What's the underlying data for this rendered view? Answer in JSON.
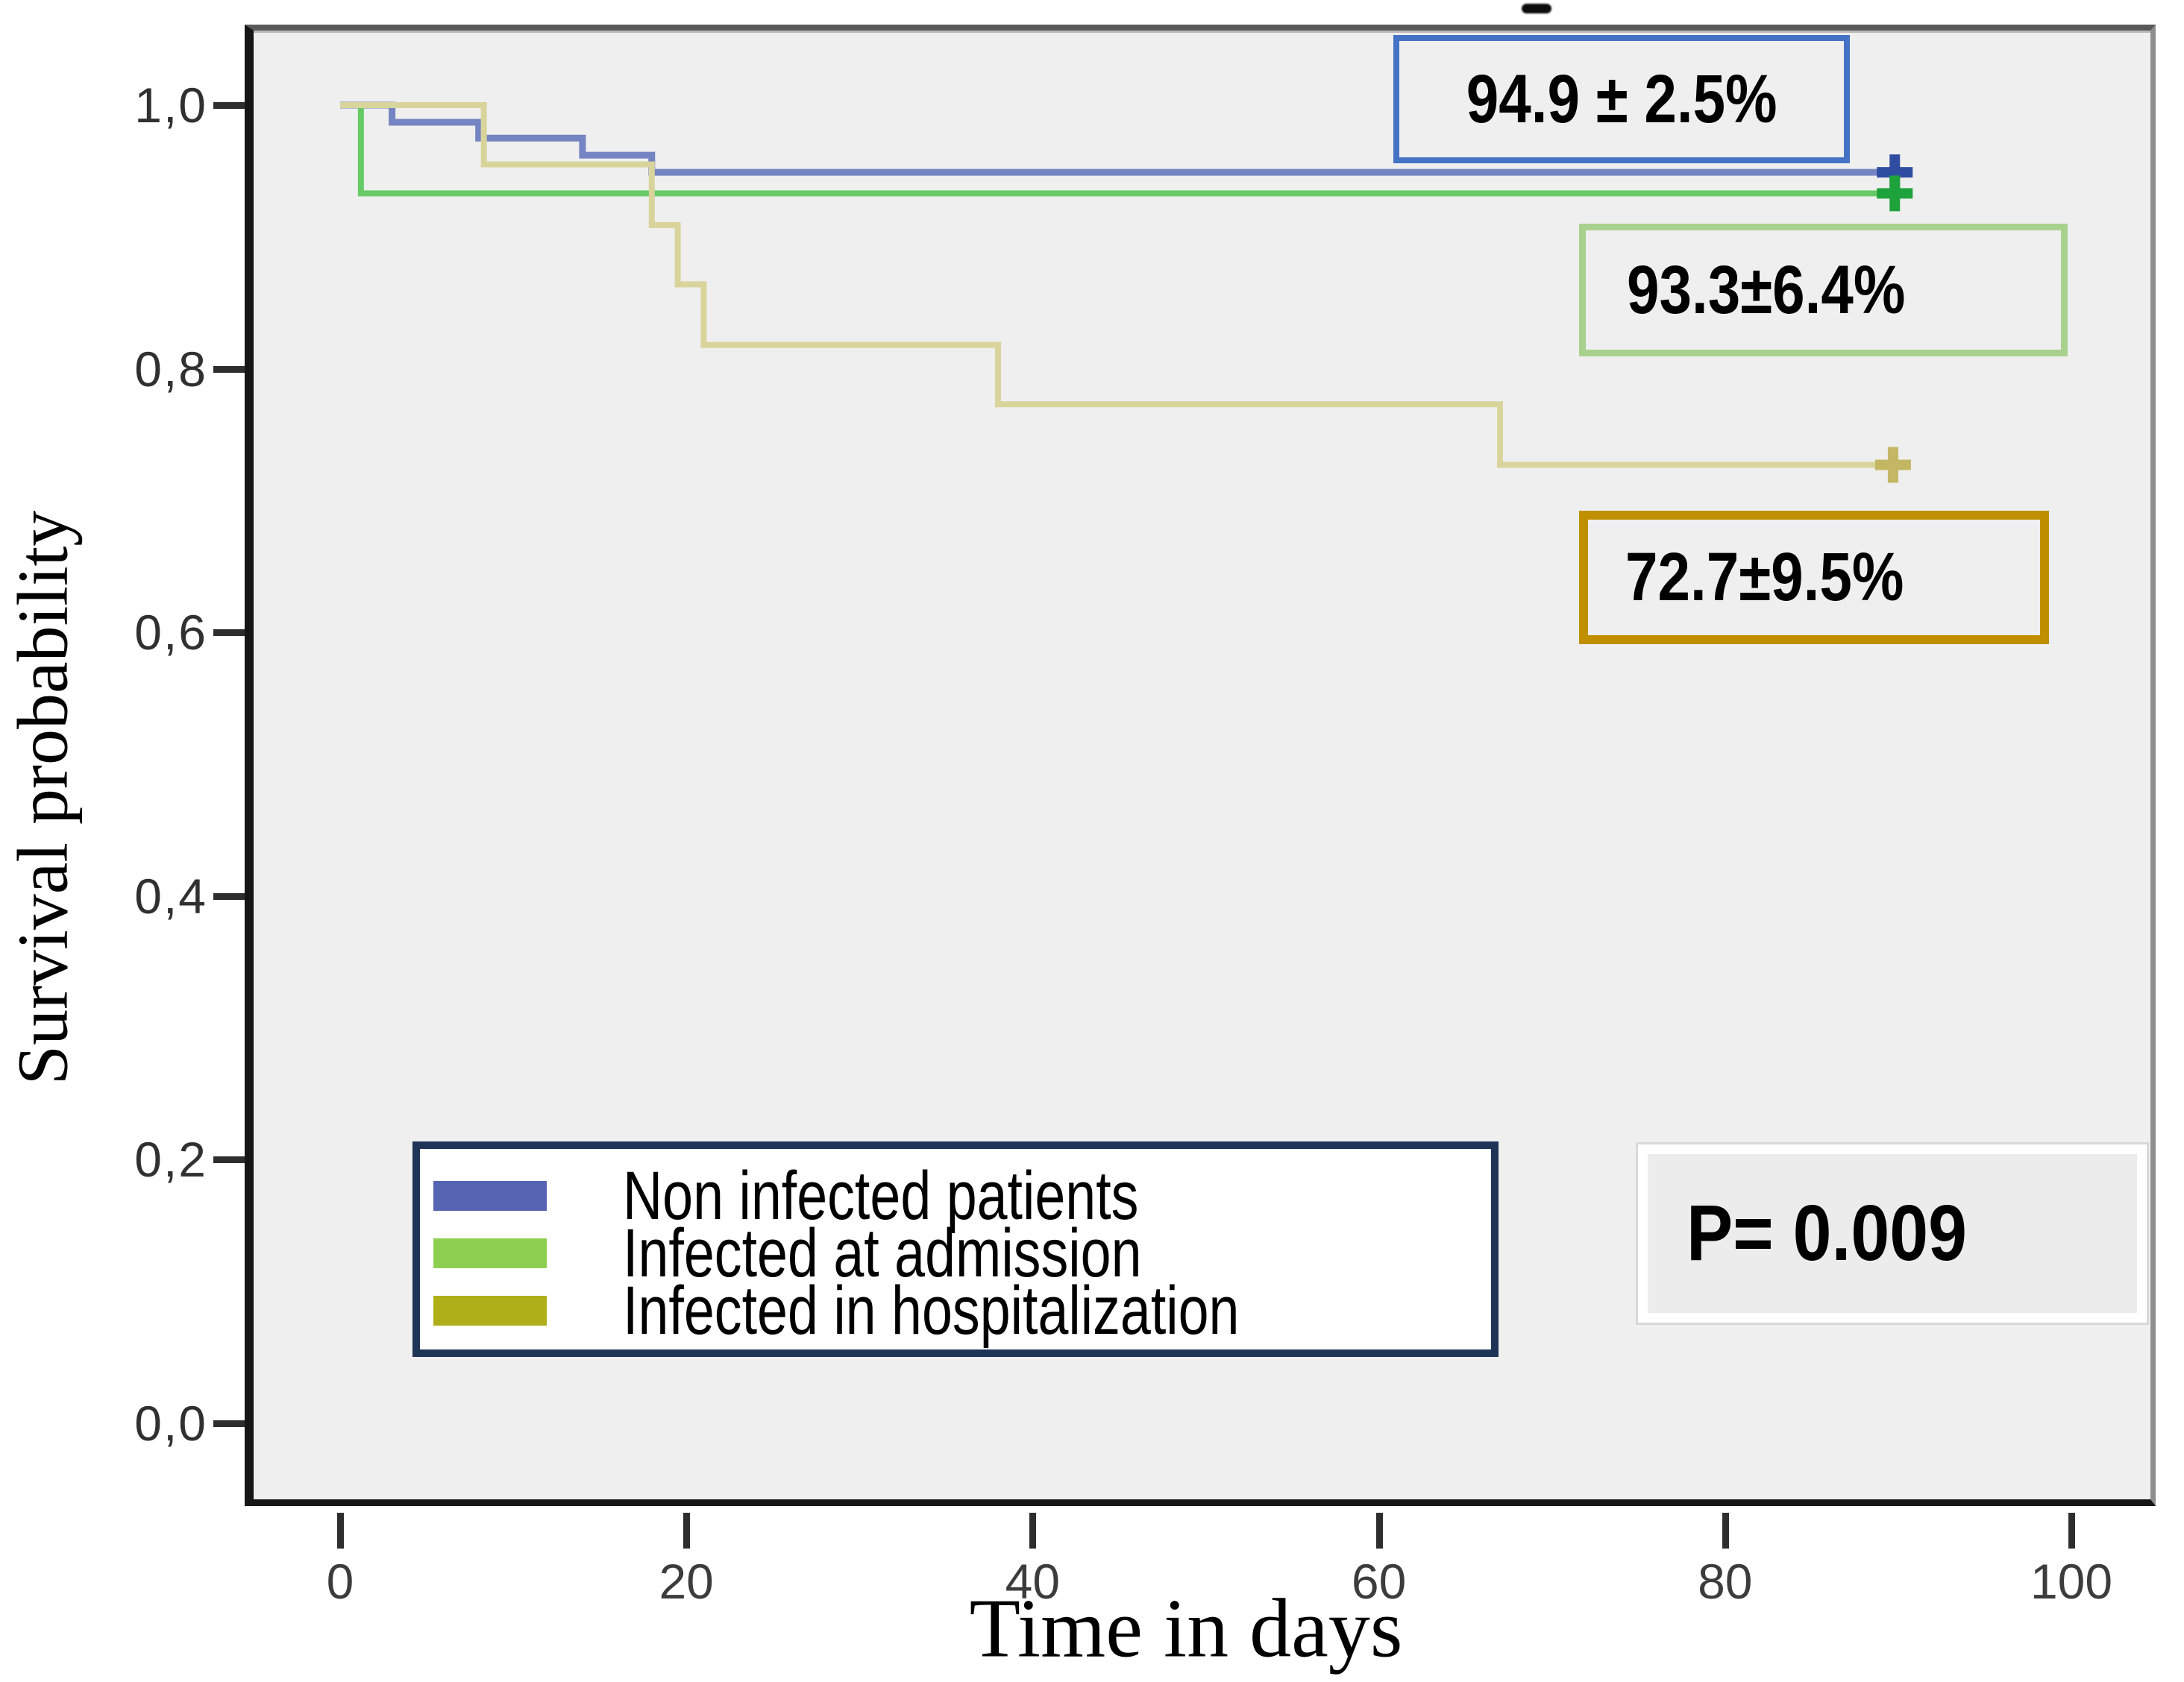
{
  "figure": {
    "ylabel": "Survival probability",
    "xlabel": "Time in days"
  },
  "annotations": [
    {
      "text": "94.9 ± 2.5%",
      "series": "Non infected patients",
      "border_color": "#4472c4"
    },
    {
      "text": "93.3±6.4%",
      "series": "Infected at admission",
      "border_color": "#a9d18e"
    },
    {
      "text": "72.7±9.5%",
      "series": "Infected in hospitalization",
      "border_color": "#bf8f00"
    }
  ],
  "legend": {
    "items": [
      {
        "label": "Non infected patients",
        "color": "#5564b3"
      },
      {
        "label": "Infected at admission",
        "color": "#8dd051"
      },
      {
        "label": "Infected in hospitalization",
        "color": "#afaf19"
      }
    ]
  },
  "p_value": {
    "text": "P= 0.009"
  },
  "chart_data": {
    "type": "line",
    "subtype": "kaplan-meier-step",
    "title": "",
    "xlabel": "Time in days",
    "ylabel": "Survival probability",
    "xlim": [
      0,
      100
    ],
    "ylim": [
      0.0,
      1.05
    ],
    "grid": false,
    "legend_position": "lower-left-box",
    "x_ticks": [
      {
        "value": 0,
        "label": "0"
      },
      {
        "value": 20,
        "label": "20"
      },
      {
        "value": 40,
        "label": "40"
      },
      {
        "value": 60,
        "label": "60"
      },
      {
        "value": 80,
        "label": "80"
      },
      {
        "value": 100,
        "label": "100"
      }
    ],
    "y_ticks": [
      {
        "value": 1.0,
        "label": "1,0"
      },
      {
        "value": 0.8,
        "label": "0,8"
      },
      {
        "value": 0.6,
        "label": "0,6"
      },
      {
        "value": 0.4,
        "label": "0,4"
      },
      {
        "value": 0.2,
        "label": "0,2"
      },
      {
        "value": 0.0,
        "label": "0,0"
      }
    ],
    "series": [
      {
        "name": "Non infected patients",
        "color": "#7584c2",
        "censor_color": "#2f4da0",
        "line_width": 9,
        "final_survival_label": "94.9 ± 2.5%",
        "steps": [
          {
            "t": 0,
            "s": 1.0
          },
          {
            "t": 3,
            "s": 0.987
          },
          {
            "t": 8,
            "s": 0.975
          },
          {
            "t": 14,
            "s": 0.962
          },
          {
            "t": 18,
            "s": 0.949
          }
        ],
        "end_t": 89.8,
        "censor_t": 89.8
      },
      {
        "name": "Infected at admission",
        "color": "#66cb66",
        "censor_color": "#1ea23c",
        "line_width": 8,
        "final_survival_label": "93.3±6.4%",
        "steps": [
          {
            "t": 0,
            "s": 1.0
          },
          {
            "t": 1.2,
            "s": 0.933
          }
        ],
        "end_t": 89.8,
        "censor_t": 89.8
      },
      {
        "name": "Infected in hospitalization",
        "color": "#d9d49b",
        "censor_color": "#c3b763",
        "line_width": 8,
        "final_survival_label": "72.7±9.5%",
        "steps": [
          {
            "t": 0,
            "s": 1.0
          },
          {
            "t": 8.3,
            "s": 0.955
          },
          {
            "t": 18,
            "s": 0.909
          },
          {
            "t": 19.5,
            "s": 0.864
          },
          {
            "t": 21,
            "s": 0.818
          },
          {
            "t": 38,
            "s": 0.773
          },
          {
            "t": 67,
            "s": 0.727
          }
        ],
        "end_t": 89.7,
        "censor_t": 89.7
      }
    ],
    "p_value": "P= 0.009"
  }
}
